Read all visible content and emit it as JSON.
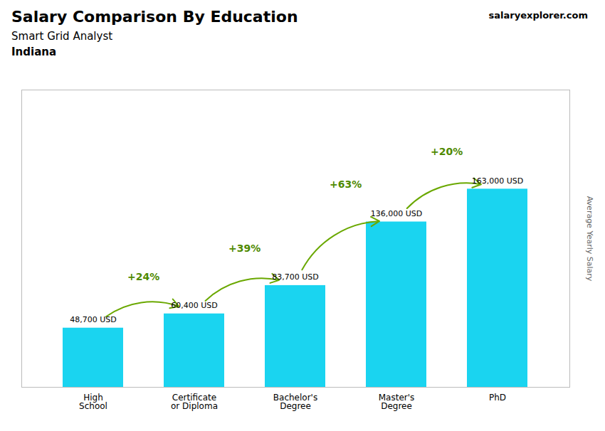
{
  "chart_data": {
    "type": "bar",
    "title": "Salary Comparison By Education",
    "subtitle": "Smart Grid Analyst",
    "categories": [
      "High\nSchool",
      "Certificate\nor Diploma",
      "Bachelor's\nDegree",
      "Master's\nDegree",
      "PhD"
    ],
    "values": [
      48700,
      60400,
      83700,
      136000,
      163000
    ],
    "value_labels": [
      "48,700 USD",
      "60,400 USD",
      "83,700 USD",
      "136,000 USD",
      "163,000 USD"
    ],
    "data_labels": true,
    "color": "#1ad4f0",
    "ylabel": "Average Yearly Salary",
    "ylim": [
      0,
      244500
    ],
    "tick_labels": "x",
    "grid": false,
    "annotations": [
      {
        "text": "Indiana"
      },
      {
        "text": "salaryexplorer.com"
      },
      {
        "text": "+24%",
        "from": "High\nSchool",
        "to": "Certificate\nor Diploma"
      },
      {
        "text": "+39%",
        "from": "Certificate\nor Diploma",
        "to": "Bachelor's\nDegree"
      },
      {
        "text": "+63%",
        "from": "Bachelor's\nDegree",
        "to": "Master's\nDegree"
      },
      {
        "text": "+20%",
        "from": "Master's\nDegree",
        "to": "PhD"
      }
    ]
  }
}
